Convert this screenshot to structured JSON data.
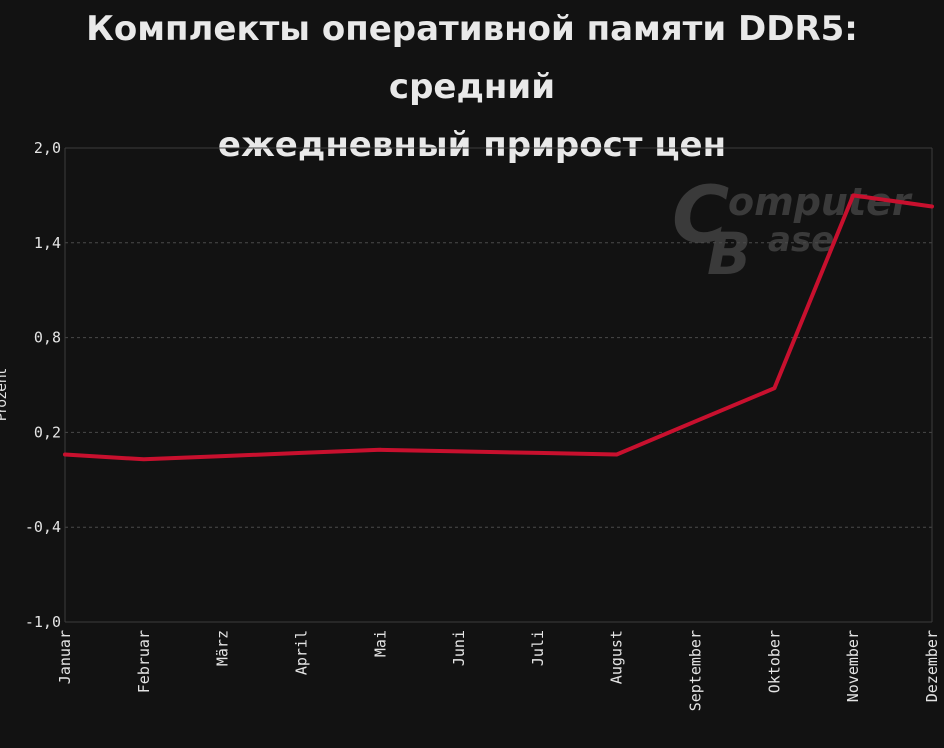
{
  "title_line1": "Комплекты оперативной памяти DDR5: средний",
  "title_line2": "ежедневный прирост цен",
  "watermark": {
    "big_c": "C",
    "big_b": "B",
    "text_top": "omputer",
    "text_bottom": "ase"
  },
  "colors": {
    "background": "#121212",
    "line": "#c8102e",
    "grid": "#4a4a4a",
    "text": "#e4e4e4"
  },
  "chart_data": {
    "type": "line",
    "title": "Комплекты оперативной памяти DDR5: средний ежедневный прирост цен",
    "ylabel": "Prozent",
    "xlabel": "",
    "ylim": [
      -1.0,
      2.0
    ],
    "yticks": [
      2.0,
      1.4,
      0.8,
      0.2,
      -0.4,
      -1.0
    ],
    "ytick_labels": [
      "2,0",
      "1,4",
      "0,8",
      "0,2",
      "-0,4",
      "-1,0"
    ],
    "grid": true,
    "categories": [
      "Januar",
      "Februar",
      "März",
      "April",
      "Mai",
      "Juni",
      "Juli",
      "August",
      "September",
      "Oktober",
      "November",
      "Dezember"
    ],
    "series": [
      {
        "values": [
          0.06,
          0.03,
          0.05,
          0.07,
          0.09,
          0.08,
          0.07,
          0.06,
          0.27,
          0.48,
          1.7,
          1.63
        ]
      }
    ]
  }
}
